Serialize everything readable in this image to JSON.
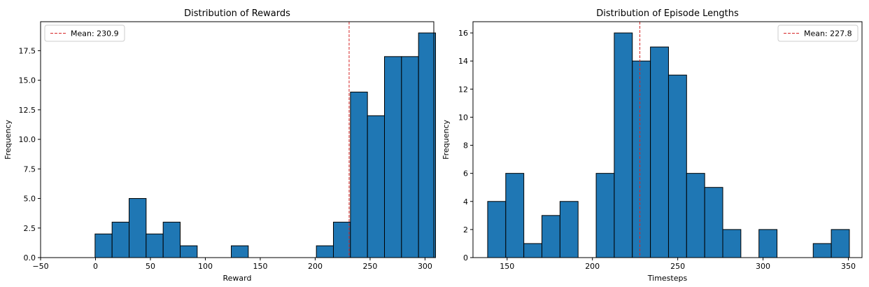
{
  "chart_data": [
    {
      "type": "bar",
      "title": "Distribution of Rewards",
      "xlabel": "Reward",
      "ylabel": "Frequency",
      "xlim": [
        -50,
        308
      ],
      "ylim": [
        0,
        19.95
      ],
      "xticks": [
        -50,
        0,
        50,
        100,
        150,
        200,
        250,
        300
      ],
      "xtick_labels": [
        "−50",
        "0",
        "50",
        "100",
        "150",
        "200",
        "250",
        "300"
      ],
      "yticks": [
        0,
        2.5,
        5,
        7.5,
        10,
        12.5,
        15,
        17.5
      ],
      "ytick_labels": [
        "0.0",
        "2.5",
        "5.0",
        "7.5",
        "10.0",
        "12.5",
        "15.0",
        "17.5"
      ],
      "bin_edges": [
        -0.4,
        15.1,
        30.6,
        46.1,
        61.6,
        77.1,
        92.6,
        108.1,
        123.6,
        139.1,
        154.6,
        170.1,
        185.6,
        201.1,
        216.6,
        232.1,
        247.6,
        263.1,
        278.6,
        294.1,
        309.6
      ],
      "values": [
        2,
        3,
        5,
        2,
        3,
        1,
        0,
        0,
        1,
        0,
        0,
        0,
        0,
        1,
        3,
        14,
        12,
        17,
        17,
        19
      ],
      "mean_line": {
        "value": 230.9,
        "label": "Mean: 230.9"
      },
      "legend_position": "top-left",
      "colors": {
        "bar": "#1f77b4",
        "edge": "#000000",
        "mean": "#d62728"
      }
    },
    {
      "type": "bar",
      "title": "Distribution of Episode Lengths",
      "xlabel": "Timesteps",
      "ylabel": "Frequency",
      "xlim": [
        130,
        358
      ],
      "ylim": [
        0,
        16.8
      ],
      "xticks": [
        150,
        200,
        250,
        300,
        350
      ],
      "xtick_labels": [
        "150",
        "200",
        "250",
        "300",
        "350"
      ],
      "yticks": [
        0,
        2,
        4,
        6,
        8,
        10,
        12,
        14,
        16
      ],
      "ytick_labels": [
        "0",
        "2",
        "4",
        "6",
        "8",
        "10",
        "12",
        "14",
        "16"
      ],
      "bin_edges": [
        138.6,
        149.2,
        159.8,
        170.4,
        181.0,
        191.6,
        202.2,
        212.8,
        223.4,
        234.0,
        244.6,
        255.2,
        265.8,
        276.4,
        287.0,
        297.6,
        308.2,
        318.8,
        329.4,
        340.0,
        350.6
      ],
      "values": [
        4,
        6,
        1,
        3,
        4,
        0,
        6,
        16,
        14,
        15,
        13,
        6,
        5,
        2,
        0,
        2,
        0,
        0,
        1,
        2
      ],
      "mean_line": {
        "value": 227.8,
        "label": "Mean: 227.8"
      },
      "legend_position": "top-right",
      "colors": {
        "bar": "#1f77b4",
        "edge": "#000000",
        "mean": "#d62728"
      }
    }
  ]
}
